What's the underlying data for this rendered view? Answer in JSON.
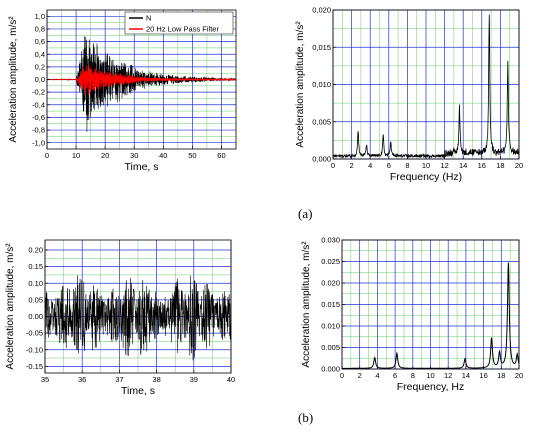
{
  "panel_labels": {
    "a": "(a)",
    "b": "(b)"
  },
  "chart_data": [
    {
      "id": "a-time",
      "type": "line",
      "title": "",
      "xlabel": "Time, s",
      "ylabel": "Acceleration amplitude, m/s²",
      "xlim": [
        0,
        65
      ],
      "ylim": [
        -1.1,
        1.1
      ],
      "xticks": [
        "0",
        "10",
        "20",
        "30",
        "40",
        "50",
        "60"
      ],
      "yticks": [
        "-1,0",
        "-0,8",
        "-0,6",
        "-0,4",
        "-0,2",
        "0,0",
        "0,2",
        "0,4",
        "0,6",
        "0,8",
        "1,0"
      ],
      "grid": true,
      "legend_position": "top-right",
      "series": [
        {
          "name": "N",
          "color": "#000000",
          "envelope": {
            "start": 10,
            "peak_time": 13,
            "peak": 0.92,
            "decay_end": 58,
            "tail": 0.02
          }
        },
        {
          "name": "20 Hz Low Pass Filter",
          "color": "#ff0000",
          "envelope": {
            "start": 10,
            "peak_time": 13,
            "peak": 0.32,
            "decay_end": 52,
            "tail": 0.01
          }
        }
      ]
    },
    {
      "id": "a-freq",
      "type": "line",
      "title": "",
      "xlabel": "Frequency (Hz)",
      "ylabel": "Acceleration amplitude, m/s²",
      "xlim": [
        0,
        20
      ],
      "ylim": [
        0,
        0.02
      ],
      "xticks": [
        "0",
        "2",
        "4",
        "6",
        "8",
        "10",
        "12",
        "14",
        "16",
        "18",
        "20"
      ],
      "yticks": [
        "0,000",
        "0,005",
        "0,010",
        "0,015",
        "0,020"
      ],
      "grid": true,
      "series": [
        {
          "name": "",
          "color": "#000000",
          "peaks": [
            [
              2.7,
              0.0035
            ],
            [
              3.6,
              0.0015
            ],
            [
              5.4,
              0.0028
            ],
            [
              6.2,
              0.002
            ],
            [
              13.6,
              0.0062
            ],
            [
              16.8,
              0.019
            ],
            [
              18.8,
              0.0125
            ]
          ]
        }
      ]
    },
    {
      "id": "b-time",
      "type": "line",
      "title": "",
      "xlabel": "Time, s",
      "ylabel": "Acceleration amplitude, m/s²",
      "xlim": [
        35,
        40
      ],
      "ylim": [
        -0.17,
        0.23
      ],
      "xticks": [
        "35",
        "36",
        "37",
        "38",
        "39",
        "40"
      ],
      "yticks": [
        "-0.15",
        "-0.10",
        "-0.05",
        "0.00",
        "0.05",
        "0.10",
        "0.15",
        "0.20"
      ],
      "grid": true,
      "series": [
        {
          "name": "",
          "color": "#000000",
          "amplitude": 0.1
        }
      ]
    },
    {
      "id": "b-freq",
      "type": "line",
      "title": "",
      "xlabel": "Frequency, Hz",
      "ylabel": "Acceleration amplitude, m/s²",
      "xlim": [
        0,
        20
      ],
      "ylim": [
        0,
        0.03
      ],
      "xticks": [
        "0",
        "2",
        "4",
        "6",
        "8",
        "10",
        "12",
        "14",
        "16",
        "18",
        "20"
      ],
      "yticks": [
        "0.000",
        "0.005",
        "0.010",
        "0.015",
        "0.020",
        "0.025",
        "0.030"
      ],
      "grid": true,
      "series": [
        {
          "name": "",
          "color": "#000000",
          "peaks": [
            [
              3.7,
              0.0025
            ],
            [
              6.2,
              0.0035
            ],
            [
              13.9,
              0.0022
            ],
            [
              16.9,
              0.007
            ],
            [
              17.8,
              0.0035
            ],
            [
              18.8,
              0.0245
            ],
            [
              19.8,
              0.003
            ]
          ]
        }
      ]
    }
  ]
}
